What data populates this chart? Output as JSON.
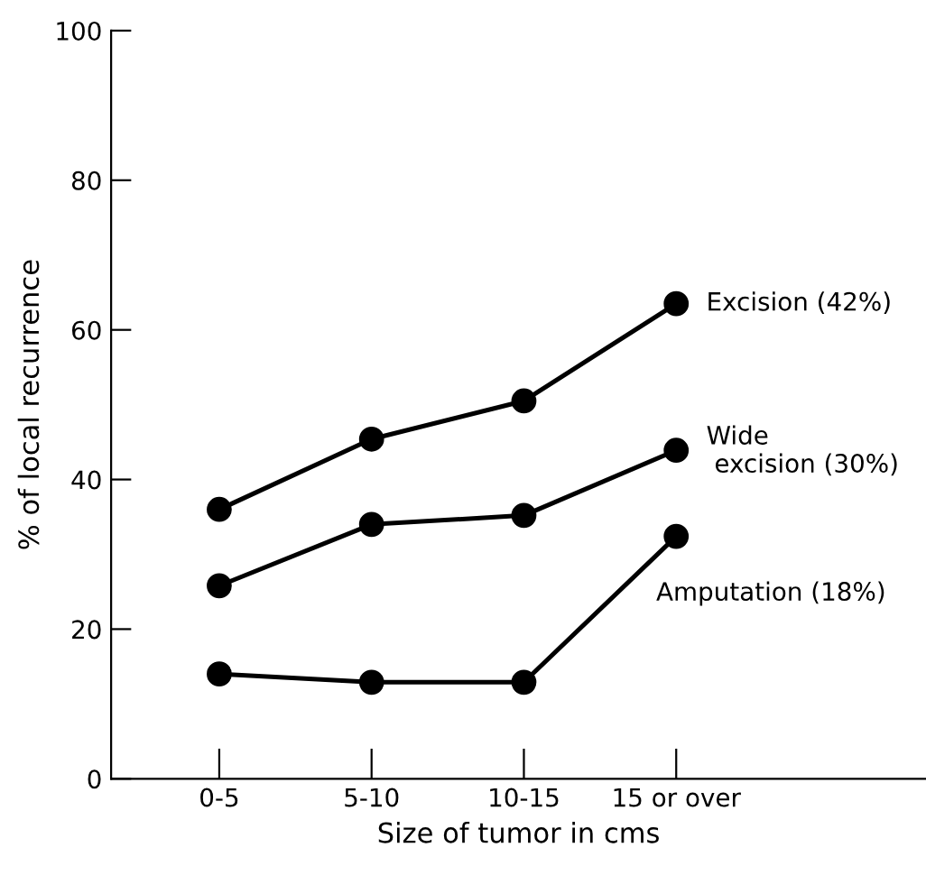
{
  "chart_data": {
    "type": "line",
    "xlabel": "Size of tumor in cms",
    "ylabel": "% of local recurrence",
    "categories": [
      "0-5",
      "5-10",
      "10-15",
      "15 or over"
    ],
    "series": [
      {
        "name": "Excision (42%)",
        "color": "#000000",
        "values": [
          36,
          45.4,
          50.5,
          63.5
        ]
      },
      {
        "name": "Wide\n excision (30%)",
        "color": "#000000",
        "values": [
          25.8,
          34,
          35.2,
          43.9
        ]
      },
      {
        "name": "Amputation (18%)",
        "color": "#000000",
        "values": [
          14,
          12.9,
          12.9,
          32.4
        ]
      }
    ],
    "ylim": [
      0,
      100
    ],
    "yticks": [
      0,
      20,
      40,
      60,
      80,
      100
    ],
    "grid": false,
    "legend": false,
    "marker": "circle",
    "line_style": "solid"
  }
}
